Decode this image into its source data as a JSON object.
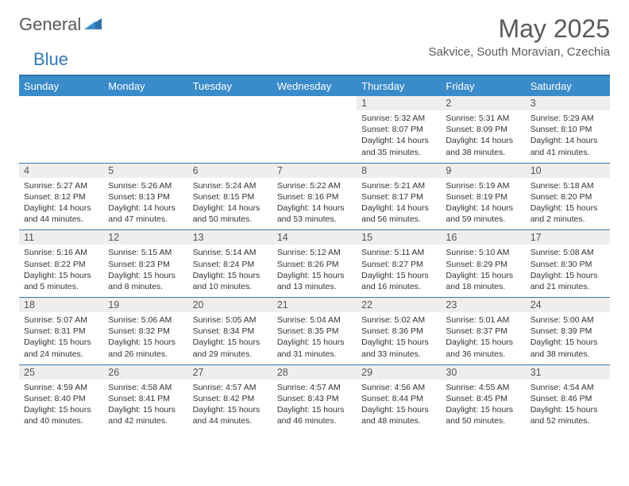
{
  "logo": {
    "text1": "General",
    "text2": "Blue"
  },
  "title": "May 2025",
  "location": "Sakvice, South Moravian, Czechia",
  "colors": {
    "header_bg": "#3a8bc9",
    "rule": "#2f6fa8",
    "daynum_bg": "#eeeeee",
    "text": "#333333",
    "logo_blue": "#3378b9"
  },
  "weekdays": [
    "Sunday",
    "Monday",
    "Tuesday",
    "Wednesday",
    "Thursday",
    "Friday",
    "Saturday"
  ],
  "weeks": [
    [
      {
        "n": "",
        "sr": "",
        "ss": "",
        "dl": ""
      },
      {
        "n": "",
        "sr": "",
        "ss": "",
        "dl": ""
      },
      {
        "n": "",
        "sr": "",
        "ss": "",
        "dl": ""
      },
      {
        "n": "",
        "sr": "",
        "ss": "",
        "dl": ""
      },
      {
        "n": "1",
        "sr": "Sunrise: 5:32 AM",
        "ss": "Sunset: 8:07 PM",
        "dl": "Daylight: 14 hours and 35 minutes."
      },
      {
        "n": "2",
        "sr": "Sunrise: 5:31 AM",
        "ss": "Sunset: 8:09 PM",
        "dl": "Daylight: 14 hours and 38 minutes."
      },
      {
        "n": "3",
        "sr": "Sunrise: 5:29 AM",
        "ss": "Sunset: 8:10 PM",
        "dl": "Daylight: 14 hours and 41 minutes."
      }
    ],
    [
      {
        "n": "4",
        "sr": "Sunrise: 5:27 AM",
        "ss": "Sunset: 8:12 PM",
        "dl": "Daylight: 14 hours and 44 minutes."
      },
      {
        "n": "5",
        "sr": "Sunrise: 5:26 AM",
        "ss": "Sunset: 8:13 PM",
        "dl": "Daylight: 14 hours and 47 minutes."
      },
      {
        "n": "6",
        "sr": "Sunrise: 5:24 AM",
        "ss": "Sunset: 8:15 PM",
        "dl": "Daylight: 14 hours and 50 minutes."
      },
      {
        "n": "7",
        "sr": "Sunrise: 5:22 AM",
        "ss": "Sunset: 8:16 PM",
        "dl": "Daylight: 14 hours and 53 minutes."
      },
      {
        "n": "8",
        "sr": "Sunrise: 5:21 AM",
        "ss": "Sunset: 8:17 PM",
        "dl": "Daylight: 14 hours and 56 minutes."
      },
      {
        "n": "9",
        "sr": "Sunrise: 5:19 AM",
        "ss": "Sunset: 8:19 PM",
        "dl": "Daylight: 14 hours and 59 minutes."
      },
      {
        "n": "10",
        "sr": "Sunrise: 5:18 AM",
        "ss": "Sunset: 8:20 PM",
        "dl": "Daylight: 15 hours and 2 minutes."
      }
    ],
    [
      {
        "n": "11",
        "sr": "Sunrise: 5:16 AM",
        "ss": "Sunset: 8:22 PM",
        "dl": "Daylight: 15 hours and 5 minutes."
      },
      {
        "n": "12",
        "sr": "Sunrise: 5:15 AM",
        "ss": "Sunset: 8:23 PM",
        "dl": "Daylight: 15 hours and 8 minutes."
      },
      {
        "n": "13",
        "sr": "Sunrise: 5:14 AM",
        "ss": "Sunset: 8:24 PM",
        "dl": "Daylight: 15 hours and 10 minutes."
      },
      {
        "n": "14",
        "sr": "Sunrise: 5:12 AM",
        "ss": "Sunset: 8:26 PM",
        "dl": "Daylight: 15 hours and 13 minutes."
      },
      {
        "n": "15",
        "sr": "Sunrise: 5:11 AM",
        "ss": "Sunset: 8:27 PM",
        "dl": "Daylight: 15 hours and 16 minutes."
      },
      {
        "n": "16",
        "sr": "Sunrise: 5:10 AM",
        "ss": "Sunset: 8:29 PM",
        "dl": "Daylight: 15 hours and 18 minutes."
      },
      {
        "n": "17",
        "sr": "Sunrise: 5:08 AM",
        "ss": "Sunset: 8:30 PM",
        "dl": "Daylight: 15 hours and 21 minutes."
      }
    ],
    [
      {
        "n": "18",
        "sr": "Sunrise: 5:07 AM",
        "ss": "Sunset: 8:31 PM",
        "dl": "Daylight: 15 hours and 24 minutes."
      },
      {
        "n": "19",
        "sr": "Sunrise: 5:06 AM",
        "ss": "Sunset: 8:32 PM",
        "dl": "Daylight: 15 hours and 26 minutes."
      },
      {
        "n": "20",
        "sr": "Sunrise: 5:05 AM",
        "ss": "Sunset: 8:34 PM",
        "dl": "Daylight: 15 hours and 29 minutes."
      },
      {
        "n": "21",
        "sr": "Sunrise: 5:04 AM",
        "ss": "Sunset: 8:35 PM",
        "dl": "Daylight: 15 hours and 31 minutes."
      },
      {
        "n": "22",
        "sr": "Sunrise: 5:02 AM",
        "ss": "Sunset: 8:36 PM",
        "dl": "Daylight: 15 hours and 33 minutes."
      },
      {
        "n": "23",
        "sr": "Sunrise: 5:01 AM",
        "ss": "Sunset: 8:37 PM",
        "dl": "Daylight: 15 hours and 36 minutes."
      },
      {
        "n": "24",
        "sr": "Sunrise: 5:00 AM",
        "ss": "Sunset: 8:39 PM",
        "dl": "Daylight: 15 hours and 38 minutes."
      }
    ],
    [
      {
        "n": "25",
        "sr": "Sunrise: 4:59 AM",
        "ss": "Sunset: 8:40 PM",
        "dl": "Daylight: 15 hours and 40 minutes."
      },
      {
        "n": "26",
        "sr": "Sunrise: 4:58 AM",
        "ss": "Sunset: 8:41 PM",
        "dl": "Daylight: 15 hours and 42 minutes."
      },
      {
        "n": "27",
        "sr": "Sunrise: 4:57 AM",
        "ss": "Sunset: 8:42 PM",
        "dl": "Daylight: 15 hours and 44 minutes."
      },
      {
        "n": "28",
        "sr": "Sunrise: 4:57 AM",
        "ss": "Sunset: 8:43 PM",
        "dl": "Daylight: 15 hours and 46 minutes."
      },
      {
        "n": "29",
        "sr": "Sunrise: 4:56 AM",
        "ss": "Sunset: 8:44 PM",
        "dl": "Daylight: 15 hours and 48 minutes."
      },
      {
        "n": "30",
        "sr": "Sunrise: 4:55 AM",
        "ss": "Sunset: 8:45 PM",
        "dl": "Daylight: 15 hours and 50 minutes."
      },
      {
        "n": "31",
        "sr": "Sunrise: 4:54 AM",
        "ss": "Sunset: 8:46 PM",
        "dl": "Daylight: 15 hours and 52 minutes."
      }
    ]
  ]
}
